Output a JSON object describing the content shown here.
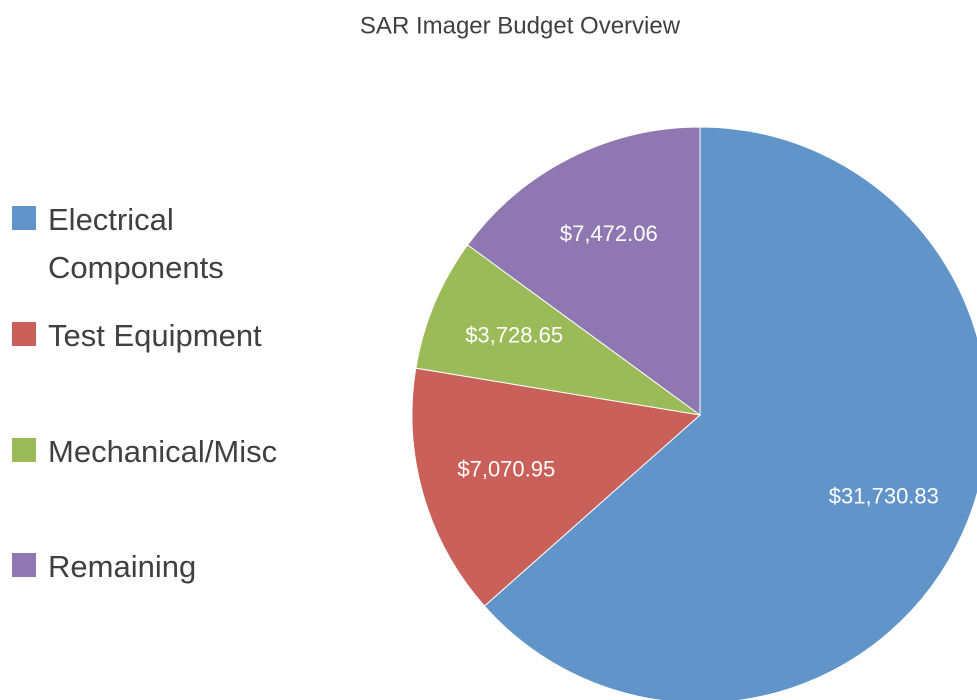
{
  "chart_data": {
    "type": "pie",
    "title": "SAR Imager Budget Overview",
    "categories": [
      "Electrical Components",
      "Test Equipment",
      "Mechanical/Misc",
      "Remaining"
    ],
    "values": [
      31730.83,
      7070.95,
      3728.65,
      7472.06
    ],
    "value_labels": [
      "$31,730.83",
      "$7,070.95",
      "$3,728.65",
      "$7,472.06"
    ],
    "colors": [
      "#6194c9",
      "#c9605a",
      "#9bbb59",
      "#8f78b1"
    ],
    "legend": "left"
  }
}
